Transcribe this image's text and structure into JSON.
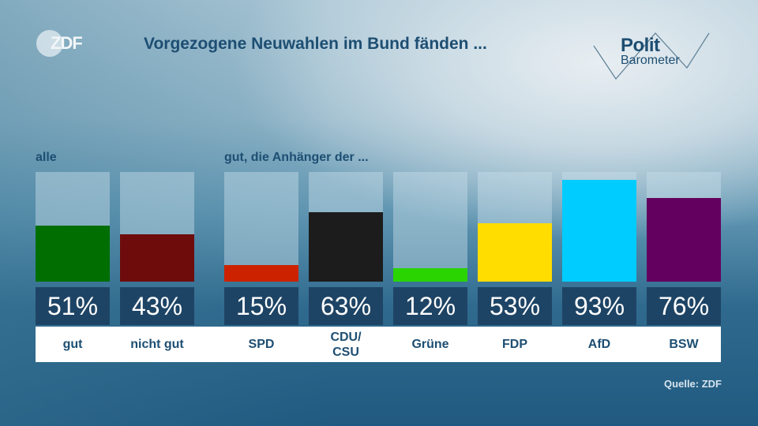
{
  "header": {
    "broadcaster_logo": "ZDF",
    "title": "Vorgezogene Neuwahlen im Bund fänden ...",
    "brand_logo": {
      "line1": "Polit",
      "line2": "Barometer"
    }
  },
  "groups": [
    {
      "label": "alle"
    },
    {
      "label": "gut, die Anhänger der ..."
    }
  ],
  "source": "Quelle: ZDF",
  "chart_data": {
    "type": "bar",
    "title": "Vorgezogene Neuwahlen im Bund fänden ...",
    "xlabel": "",
    "ylabel": "",
    "ylim": [
      0,
      100
    ],
    "unit": "%",
    "grid": false,
    "legend": "none",
    "categories": [
      "gut",
      "nicht gut",
      "SPD",
      "CDU/\nCSU",
      "Grüne",
      "FDP",
      "AfD",
      "BSW"
    ],
    "groups": [
      "alle",
      "alle",
      "gut, die Anhänger der ...",
      "gut, die Anhänger der ...",
      "gut, die Anhänger der ...",
      "gut, die Anhänger der ...",
      "gut, die Anhänger der ...",
      "gut, die Anhänger der ..."
    ],
    "values": [
      51,
      43,
      15,
      63,
      12,
      53,
      93,
      76
    ],
    "value_labels": [
      "51%",
      "43%",
      "15%",
      "63%",
      "12%",
      "53%",
      "93%",
      "76%"
    ],
    "colors": [
      "#006e00",
      "#6e0c0c",
      "#cc2200",
      "#1c1c1c",
      "#2ad400",
      "#ffdd00",
      "#00ccff",
      "#63005f"
    ]
  }
}
